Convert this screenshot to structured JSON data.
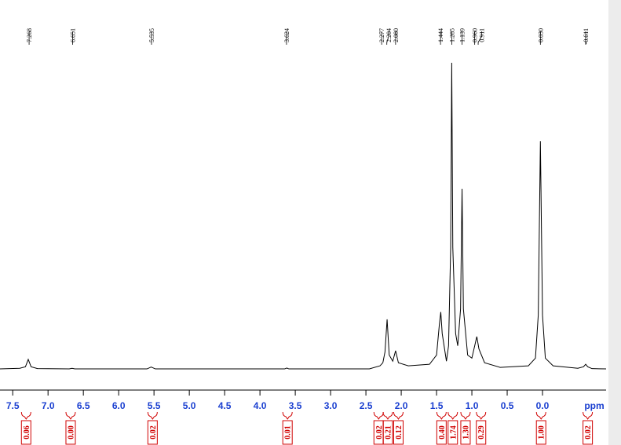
{
  "chart_data": {
    "type": "line",
    "color": "#000000",
    "xlabel": "ppm",
    "xlim": [
      7.68,
      -0.9
    ],
    "ylim": [
      0,
      100
    ],
    "xticks": [
      7.5,
      {
        "value": 7,
        "label": "7.0"
      },
      6.5,
      {
        "value": 6,
        "label": "6.0"
      },
      5.5,
      {
        "value": 5,
        "label": "5.0"
      },
      4.5,
      {
        "value": 4,
        "label": "4.0"
      },
      3.5,
      {
        "value": 3,
        "label": "3.0"
      },
      2.5,
      {
        "value": 2,
        "label": "2.0"
      },
      1.5,
      {
        "value": 1,
        "label": "1.0"
      },
      0.5,
      {
        "value": 0,
        "label": "0.0"
      }
    ],
    "x": [
      7.68,
      7.4,
      7.32,
      7.28,
      7.24,
      7.15,
      6.7,
      6.66,
      6.62,
      5.6,
      5.54,
      5.48,
      3.65,
      3.62,
      3.59,
      2.45,
      2.3,
      2.26,
      2.23,
      2.2,
      2.17,
      2.12,
      2.08,
      2.04,
      1.9,
      1.6,
      1.5,
      1.46,
      1.44,
      1.42,
      1.36,
      1.33,
      1.3,
      1.285,
      1.27,
      1.23,
      1.2,
      1.16,
      1.139,
      1.12,
      1.06,
      1.0,
      0.95,
      0.93,
      0.9,
      0.82,
      0.6,
      0.2,
      0.1,
      0.06,
      0.03,
      0.0,
      -0.04,
      -0.15,
      -0.5,
      -0.58,
      -0.611,
      -0.64,
      -0.7,
      -0.9
    ],
    "values": [
      0.5,
      0.7,
      1.2,
      3.6,
      1.2,
      0.6,
      0.5,
      0.7,
      0.5,
      0.5,
      1.1,
      0.5,
      0.5,
      0.8,
      0.5,
      0.5,
      1.5,
      2.5,
      6,
      16.6,
      5,
      3,
      6.4,
      2.5,
      1.5,
      2,
      5,
      15,
      19,
      12,
      3,
      8,
      40,
      100,
      40,
      12,
      8,
      20,
      59,
      20,
      5,
      4,
      9,
      11,
      7,
      2.5,
      1,
      1.5,
      4,
      18,
      74.5,
      18,
      4,
      1.5,
      0.7,
      1.2,
      2,
      1.2,
      0.6,
      0.5
    ],
    "peak_labels": [
      7.268,
      6.651,
      5.535,
      3.624,
      2.277,
      2.204,
      {
        "value": 2.08,
        "label": "2.080"
      },
      1.444,
      1.285,
      1.139,
      {
        "value": 0.96,
        "label": "0.960"
      },
      0.911,
      {
        "value": 0.03,
        "label": "0.030"
      },
      -0.611
    ],
    "integrals": {
      "x": [
        7.31,
        6.68,
        5.52,
        3.61,
        2.32,
        2.19,
        2.04,
        1.43,
        1.27,
        1.09,
        0.87,
        0.02,
        -0.64
      ],
      "values": [
        0.06,
        0,
        0.02,
        0.01,
        0.02,
        0.21,
        0.12,
        0.4,
        1.74,
        1.3,
        0.29,
        1,
        0.02
      ],
      "value_labels": [
        "0.06",
        "0.00",
        "0.02",
        "0.01",
        "0.02",
        "0.21",
        "0.12",
        "0.40",
        "1.74",
        "1.30",
        "0.29",
        "1.00",
        "0.02"
      ]
    }
  }
}
